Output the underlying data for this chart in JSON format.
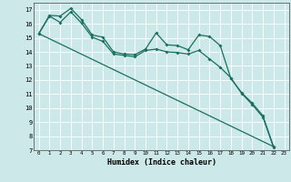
{
  "xlabel": "Humidex (Indice chaleur)",
  "bg_color": "#cce8e8",
  "line_color": "#1a7060",
  "grid_color": "#ffffff",
  "xlim": [
    -0.5,
    23.5
  ],
  "ylim": [
    7,
    17.5
  ],
  "yticks": [
    7,
    8,
    9,
    10,
    11,
    12,
    13,
    14,
    15,
    16,
    17
  ],
  "xticks": [
    0,
    1,
    2,
    3,
    4,
    5,
    6,
    7,
    8,
    9,
    10,
    11,
    12,
    13,
    14,
    15,
    16,
    17,
    18,
    19,
    20,
    21,
    22,
    23
  ],
  "line1_x": [
    0,
    1,
    2,
    3,
    4,
    5,
    6,
    7,
    8,
    9,
    10,
    11,
    12,
    13,
    14,
    15,
    16,
    17,
    18,
    19,
    20,
    21,
    22
  ],
  "line1_y": [
    15.3,
    16.6,
    16.55,
    17.1,
    16.3,
    15.2,
    15.05,
    14.0,
    13.85,
    13.8,
    14.2,
    15.35,
    14.5,
    14.45,
    14.15,
    15.2,
    15.1,
    14.45,
    12.1,
    11.1,
    10.35,
    9.45,
    7.25
  ],
  "line2_x": [
    0,
    1,
    2,
    3,
    4,
    5,
    6,
    7,
    8,
    9,
    10,
    11,
    12,
    13,
    14,
    15,
    16,
    17,
    18,
    19,
    20,
    21,
    22
  ],
  "line2_y": [
    15.3,
    16.55,
    16.1,
    16.85,
    16.05,
    15.05,
    14.75,
    13.85,
    13.75,
    13.65,
    14.1,
    14.2,
    14.0,
    13.95,
    13.85,
    14.1,
    13.5,
    12.9,
    12.15,
    11.05,
    10.25,
    9.35,
    7.2
  ],
  "line3_x": [
    0,
    22
  ],
  "line3_y": [
    15.3,
    7.25
  ]
}
